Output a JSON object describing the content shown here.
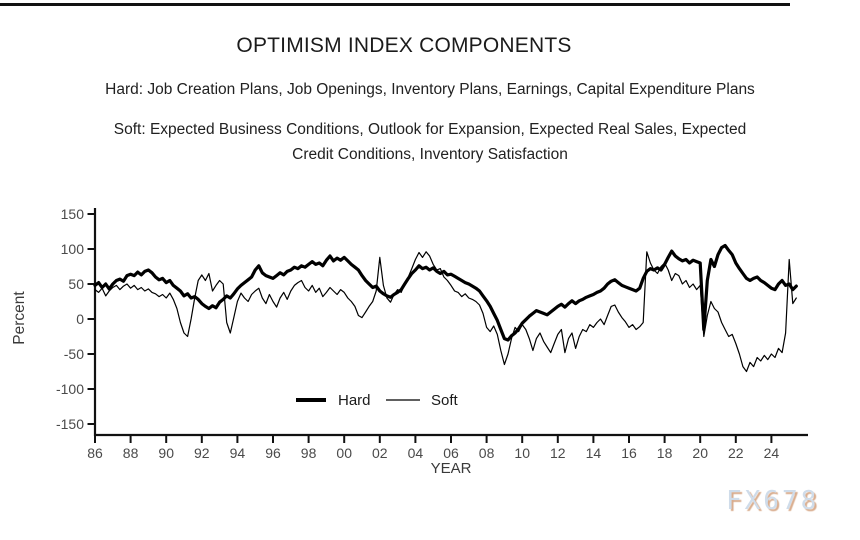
{
  "header": {
    "title": "OPTIMISM INDEX COMPONENTS",
    "subtitle_hard": "Hard: Job Creation Plans, Job Openings, Inventory Plans, Earnings, Capital Expenditure Plans",
    "subtitle_soft_line1": "Soft: Expected Business Conditions, Outlook for Expansion, Expected Real Sales, Expected",
    "subtitle_soft_line2": "Credit Conditions, Inventory Satisfaction"
  },
  "watermark": "FX678",
  "colors": {
    "line": "#000000",
    "axis": "#111111",
    "tick_label": "#4a4a4a",
    "axis_title": "#3a3a3a",
    "text": "#212121",
    "watermark_fill": "#cfdcea",
    "watermark_shadow": "#d9ad8e"
  },
  "chart_data": {
    "type": "line",
    "title": "OPTIMISM INDEX COMPONENTS",
    "xlabel": "YEAR",
    "ylabel": "Percent",
    "ylim": [
      -150,
      150
    ],
    "xlim": [
      1986,
      2026
    ],
    "grid": false,
    "legend_position": "inside-bottom-center",
    "yticks": [
      150,
      100,
      50,
      0,
      -50,
      -100,
      -150
    ],
    "xtick_years": [
      1986,
      1988,
      1990,
      1992,
      1994,
      1996,
      1998,
      2000,
      2002,
      2004,
      2006,
      2008,
      2010,
      2012,
      2014,
      2016,
      2018,
      2020,
      2022,
      2024
    ],
    "xtick_labels": [
      "86",
      "88",
      "90",
      "92",
      "94",
      "96",
      "98",
      "00",
      "02",
      "04",
      "06",
      "08",
      "10",
      "12",
      "14",
      "16",
      "18",
      "20",
      "22",
      "24"
    ],
    "x_start": 1986.0,
    "x_step": 0.2,
    "legend": [
      {
        "name": "Hard",
        "weight": "thick"
      },
      {
        "name": "Soft",
        "weight": "thin"
      }
    ],
    "series": [
      {
        "name": "Hard",
        "stroke_width": 3.2,
        "values": [
          48,
          52,
          45,
          50,
          43,
          50,
          55,
          57,
          54,
          62,
          64,
          62,
          67,
          63,
          68,
          70,
          66,
          60,
          56,
          58,
          52,
          55,
          48,
          44,
          40,
          33,
          36,
          30,
          32,
          28,
          22,
          18,
          15,
          19,
          16,
          24,
          28,
          33,
          30,
          36,
          43,
          48,
          52,
          56,
          60,
          70,
          76,
          66,
          62,
          60,
          58,
          62,
          66,
          63,
          68,
          70,
          74,
          72,
          76,
          74,
          78,
          82,
          78,
          80,
          76,
          84,
          90,
          83,
          87,
          84,
          88,
          83,
          78,
          74,
          70,
          62,
          55,
          50,
          45,
          47,
          40,
          36,
          33,
          31,
          35,
          38,
          42,
          50,
          58,
          65,
          70,
          76,
          72,
          74,
          70,
          73,
          68,
          65,
          68,
          63,
          64,
          61,
          58,
          55,
          52,
          50,
          47,
          44,
          40,
          33,
          26,
          18,
          8,
          -2,
          -15,
          -28,
          -30,
          -24,
          -20,
          -14,
          -6,
          -1,
          4,
          8,
          12,
          10,
          8,
          6,
          10,
          14,
          18,
          21,
          17,
          22,
          26,
          22,
          26,
          28,
          31,
          33,
          35,
          38,
          40,
          44,
          50,
          54,
          56,
          52,
          48,
          46,
          44,
          42,
          40,
          44,
          58,
          68,
          72,
          70,
          73,
          70,
          78,
          88,
          97,
          90,
          86,
          83,
          85,
          80,
          84,
          82,
          80,
          -15,
          55,
          85,
          75,
          92,
          102,
          105,
          98,
          92,
          80,
          72,
          65,
          58,
          55,
          58,
          60,
          55,
          52,
          48,
          44,
          42,
          50,
          55,
          48,
          50,
          42,
          47
        ]
      },
      {
        "name": "Soft",
        "stroke_width": 1.2,
        "values": [
          42,
          38,
          44,
          33,
          40,
          45,
          48,
          42,
          47,
          50,
          44,
          48,
          42,
          45,
          40,
          43,
          38,
          36,
          32,
          35,
          30,
          37,
          28,
          15,
          -5,
          -20,
          -25,
          0,
          30,
          55,
          63,
          55,
          65,
          40,
          48,
          55,
          50,
          -5,
          -20,
          2,
          25,
          37,
          30,
          25,
          35,
          40,
          44,
          30,
          22,
          35,
          25,
          17,
          30,
          38,
          28,
          40,
          48,
          52,
          55,
          45,
          40,
          48,
          38,
          44,
          32,
          38,
          45,
          40,
          35,
          42,
          38,
          30,
          25,
          18,
          5,
          2,
          10,
          18,
          25,
          40,
          88,
          48,
          30,
          24,
          35,
          42,
          38,
          50,
          60,
          72,
          85,
          95,
          88,
          96,
          90,
          78,
          70,
          72,
          60,
          55,
          48,
          40,
          38,
          32,
          36,
          30,
          28,
          25,
          20,
          8,
          -12,
          -18,
          -10,
          -22,
          -45,
          -65,
          -50,
          -28,
          -12,
          -18,
          -8,
          -15,
          -28,
          -45,
          -28,
          -20,
          -32,
          -40,
          -48,
          -35,
          -22,
          -15,
          -48,
          -28,
          -20,
          -42,
          -25,
          -15,
          -18,
          -8,
          -12,
          -5,
          0,
          -8,
          5,
          18,
          20,
          10,
          2,
          -4,
          -12,
          -8,
          -15,
          -11,
          -5,
          96,
          80,
          70,
          65,
          75,
          80,
          70,
          55,
          65,
          62,
          50,
          55,
          45,
          50,
          42,
          48,
          -25,
          5,
          25,
          15,
          10,
          -5,
          -15,
          -25,
          -22,
          -35,
          -50,
          -68,
          -75,
          -62,
          -68,
          -55,
          -60,
          -52,
          -58,
          -50,
          -55,
          -42,
          -48,
          -20,
          85,
          22,
          30
        ]
      }
    ]
  }
}
